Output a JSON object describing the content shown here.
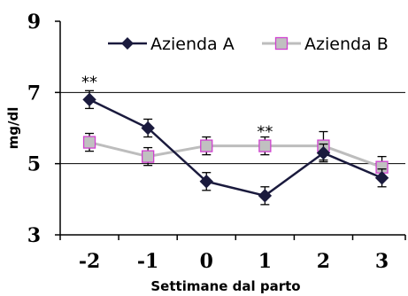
{
  "chart_data": {
    "type": "line",
    "xlabel": "Settimane dal parto",
    "ylabel": "mg/dl",
    "categories": [
      "-2",
      "-1",
      "0",
      "1",
      "2",
      "3"
    ],
    "x": [
      -2,
      -1,
      0,
      1,
      2,
      3
    ],
    "ylim": [
      3,
      9
    ],
    "yticks": [
      3,
      5,
      7,
      9
    ],
    "gridlines_y": [
      5,
      7
    ],
    "legend_placement": "top",
    "series": [
      {
        "name": "Azienda A",
        "values": [
          6.8,
          6.0,
          4.5,
          4.1,
          5.3,
          4.6
        ],
        "errors": [
          0.25,
          0.25,
          0.25,
          0.25,
          0.25,
          0.25
        ],
        "color": "#1a1a3d",
        "marker": "diamond"
      },
      {
        "name": "Azienda B",
        "values": [
          5.6,
          5.2,
          5.5,
          5.5,
          5.5,
          4.9
        ],
        "errors": [
          0.25,
          0.25,
          0.25,
          0.25,
          0.4,
          0.3
        ],
        "color": "#bdbdbd",
        "marker_fill": "#c0c0c0",
        "marker_edge": "#d040d0",
        "marker": "square"
      }
    ],
    "annotations": [
      {
        "text": "**",
        "x": -2,
        "y": 7.3
      },
      {
        "text": "**",
        "x": 1,
        "y": 5.9
      }
    ]
  }
}
